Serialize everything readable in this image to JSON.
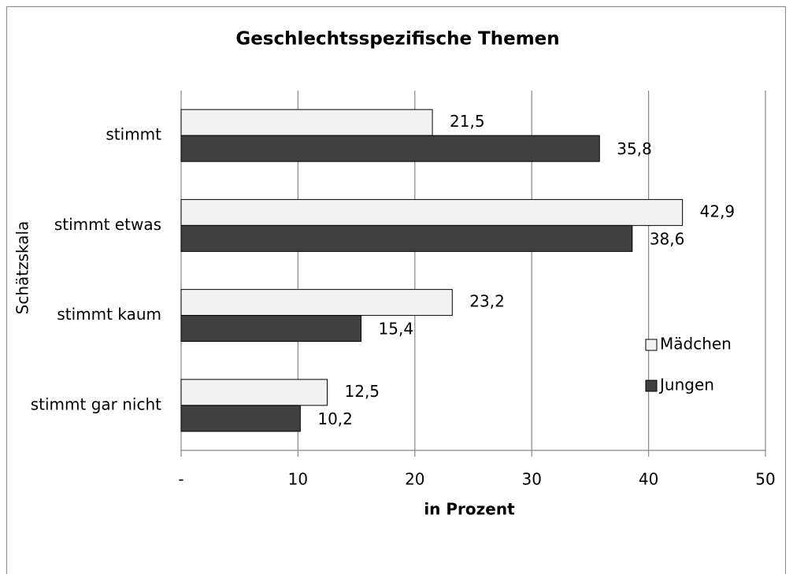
{
  "chart_data": {
    "type": "bar",
    "orientation": "horizontal",
    "title": "Geschlechtsspezifische Themen",
    "x_label": "in Prozent",
    "y_label": "Schätzskala",
    "categories": [
      "stimmt",
      "stimmt etwas",
      "stimmt kaum",
      "stimmt gar nicht"
    ],
    "series": [
      {
        "name": "Mädchen",
        "color": "#f2f2f2",
        "values": [
          21.5,
          42.9,
          23.2,
          12.5
        ],
        "value_labels": [
          "21,5",
          "42,9",
          "23,2",
          "12,5"
        ]
      },
      {
        "name": "Jungen",
        "color": "#404040",
        "values": [
          35.8,
          38.6,
          15.4,
          10.2
        ],
        "value_labels": [
          "35,8",
          "38,6",
          "15,4",
          "10,2"
        ]
      }
    ],
    "xlim": [
      0,
      50
    ],
    "xticks": [
      {
        "value": 0,
        "label": "-"
      },
      10,
      20,
      30,
      40,
      50
    ],
    "grid": true,
    "legend": "right"
  }
}
